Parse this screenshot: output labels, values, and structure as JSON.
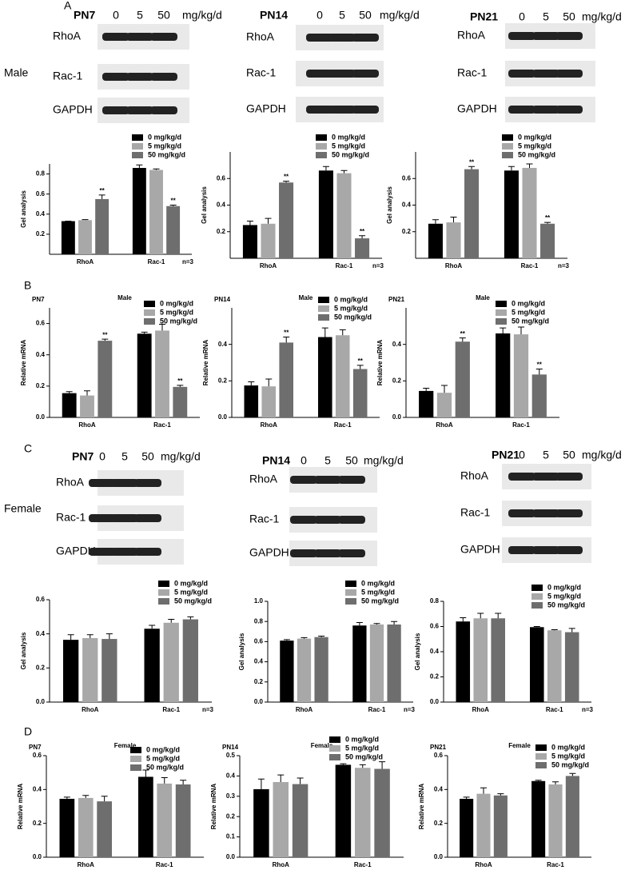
{
  "panels": [
    "A",
    "B",
    "C",
    "D"
  ],
  "sexes": [
    "Male",
    "Female"
  ],
  "blots": [
    {
      "label": "PN7",
      "doses": [
        "0",
        "5",
        "50"
      ],
      "unit": "mg/kg/d",
      "rows": [
        "RhoA",
        "Rac-1",
        "GAPDH"
      ]
    },
    {
      "label": "PN14",
      "doses": [
        "0",
        "5",
        "50"
      ],
      "unit": "mg/kg/d",
      "rows": [
        "RhoA",
        "Rac-1",
        "GAPDH"
      ]
    },
    {
      "label": "PN21",
      "doses": [
        "0",
        "5",
        "50"
      ],
      "unit": "mg/kg/d",
      "rows": [
        "RhoA",
        "Rac-1",
        "GAPDH"
      ]
    },
    {
      "label": "PN7",
      "doses": [
        "0",
        "5",
        "50"
      ],
      "unit": "mg/kg/d",
      "rows": [
        "RhoA",
        "Rac-1",
        "GAPDH"
      ]
    },
    {
      "label": "PN14",
      "doses": [
        "0",
        "5",
        "50"
      ],
      "unit": "mg/kg/d",
      "rows": [
        "RhoA",
        "Rac-1",
        "GAPDH"
      ]
    },
    {
      "label": "PN21",
      "doses": [
        "0",
        "5",
        "50"
      ],
      "unit": "mg/kg/d",
      "rows": [
        "RhoA",
        "Rac-1",
        "GAPDH"
      ]
    }
  ],
  "chart_data": [
    {
      "type": "bar",
      "ylabel": "Gel analysis",
      "note": "n=3",
      "categories": [
        "RhoA",
        "Rac-1"
      ],
      "ylim": [
        0,
        0.9
      ],
      "yticks": [
        0.2,
        0.4,
        0.6,
        0.8
      ],
      "series": [
        {
          "name": "0 mg/kg/d",
          "color": "#000000",
          "values": [
            0.33,
            0.86
          ],
          "errors": [
            0,
            0.03
          ],
          "annotations": [
            null,
            null
          ]
        },
        {
          "name": "5 mg/kg/d",
          "color": "#a8a8a8",
          "values": [
            0.34,
            0.84
          ],
          "errors": [
            0.005,
            0.01
          ],
          "annotations": [
            null,
            null
          ]
        },
        {
          "name": "50 mg/kg/d",
          "color": "#6e6e6e",
          "values": [
            0.55,
            0.48
          ],
          "errors": [
            0.04,
            0.01
          ],
          "annotations": [
            "**",
            "**"
          ]
        }
      ]
    },
    {
      "type": "bar",
      "ylabel": "Gel analysis",
      "note": "n=3",
      "categories": [
        "RhoA",
        "Rac-1"
      ],
      "ylim": [
        0,
        0.8
      ],
      "yticks": [
        0.2,
        0.4,
        0.6
      ],
      "series": [
        {
          "name": "0 mg/kg/d",
          "color": "#000000",
          "values": [
            0.25,
            0.66
          ],
          "errors": [
            0.03,
            0.03
          ],
          "annotations": [
            null,
            null
          ]
        },
        {
          "name": "5 mg/kg/d",
          "color": "#a8a8a8",
          "values": [
            0.26,
            0.64
          ],
          "errors": [
            0.04,
            0.02
          ],
          "annotations": [
            null,
            null
          ]
        },
        {
          "name": "50 mg/kg/d",
          "color": "#6e6e6e",
          "values": [
            0.57,
            0.15
          ],
          "errors": [
            0.01,
            0.02
          ],
          "annotations": [
            "**",
            "**"
          ]
        }
      ]
    },
    {
      "type": "bar",
      "ylabel": "Gel analysis",
      "note": "n=3",
      "categories": [
        "RhoA",
        "Rac-1"
      ],
      "ylim": [
        0,
        0.8
      ],
      "yticks": [
        0.2,
        0.4,
        0.6
      ],
      "series": [
        {
          "name": "0 mg/kg/d",
          "color": "#000000",
          "values": [
            0.26,
            0.66
          ],
          "errors": [
            0.03,
            0.03
          ],
          "annotations": [
            null,
            null
          ]
        },
        {
          "name": "5 mg/kg/d",
          "color": "#a8a8a8",
          "values": [
            0.27,
            0.68
          ],
          "errors": [
            0.04,
            0.03
          ],
          "annotations": [
            null,
            null
          ]
        },
        {
          "name": "50 mg/kg/d",
          "color": "#6e6e6e",
          "values": [
            0.67,
            0.26
          ],
          "errors": [
            0.02,
            0.01
          ],
          "annotations": [
            "**",
            "**"
          ]
        }
      ]
    },
    {
      "type": "bar",
      "label": "PN7",
      "title": "Male",
      "ylabel": "Relative mRNA",
      "categories": [
        "RhoA",
        "Rac-1"
      ],
      "ylim": [
        0,
        0.7
      ],
      "yticks": [
        {
          "value": 0,
          "label": "0.0"
        },
        0.2,
        0.4,
        0.6
      ],
      "series": [
        {
          "name": "0 mg/kg/d",
          "color": "#000000",
          "values": [
            0.155,
            0.535
          ],
          "errors": [
            0.01,
            0.01
          ],
          "annotations": [
            null,
            null
          ]
        },
        {
          "name": "5 mg/kg/d",
          "color": "#a8a8a8",
          "values": [
            0.14,
            0.555
          ],
          "errors": [
            0.03,
            0.04
          ],
          "annotations": [
            null,
            null
          ]
        },
        {
          "name": "50 mg/kg/d",
          "color": "#6e6e6e",
          "values": [
            0.49,
            0.195
          ],
          "errors": [
            0.01,
            0.01
          ],
          "annotations": [
            "**",
            "**"
          ]
        }
      ]
    },
    {
      "type": "bar",
      "label": "PN14",
      "title": "Male",
      "ylabel": "Relative mRNA",
      "categories": [
        "RhoA",
        "Rac-1"
      ],
      "ylim": [
        0,
        0.6
      ],
      "yticks": [
        {
          "value": 0,
          "label": "0.0"
        },
        0.2,
        0.4
      ],
      "series": [
        {
          "name": "0 mg/kg/d",
          "color": "#000000",
          "values": [
            0.175,
            0.44
          ],
          "errors": [
            0.02,
            0.05
          ],
          "annotations": [
            null,
            null
          ]
        },
        {
          "name": "5 mg/kg/d",
          "color": "#a8a8a8",
          "values": [
            0.17,
            0.45
          ],
          "errors": [
            0.04,
            0.03
          ],
          "annotations": [
            null,
            null
          ]
        },
        {
          "name": "50 mg/kg/d",
          "color": "#6e6e6e",
          "values": [
            0.41,
            0.265
          ],
          "errors": [
            0.03,
            0.02
          ],
          "annotations": [
            "**",
            "**"
          ]
        }
      ]
    },
    {
      "type": "bar",
      "label": "PN21",
      "title": "Male",
      "ylabel": "Relative mRNA",
      "categories": [
        "RhoA",
        "Rac-1"
      ],
      "ylim": [
        0,
        0.6
      ],
      "yticks": [
        {
          "value": 0,
          "label": "0.0"
        },
        0.2,
        0.4
      ],
      "series": [
        {
          "name": "0 mg/kg/d",
          "color": "#000000",
          "values": [
            0.145,
            0.46
          ],
          "errors": [
            0.015,
            0.03
          ],
          "annotations": [
            null,
            null
          ]
        },
        {
          "name": "5 mg/kg/d",
          "color": "#a8a8a8",
          "values": [
            0.135,
            0.455
          ],
          "errors": [
            0.04,
            0.04
          ],
          "annotations": [
            null,
            null
          ]
        },
        {
          "name": "50 mg/kg/d",
          "color": "#6e6e6e",
          "values": [
            0.415,
            0.235
          ],
          "errors": [
            0.02,
            0.03
          ],
          "annotations": [
            "**",
            "**"
          ]
        }
      ]
    },
    {
      "type": "bar",
      "ylabel": "Gel analysis",
      "note": "n=3",
      "categories": [
        "RhoA",
        "Rac-1"
      ],
      "ylim": [
        0,
        0.6
      ],
      "yticks": [
        {
          "value": 0,
          "label": "0.0"
        },
        0.2,
        0.4,
        0.6
      ],
      "series": [
        {
          "name": "0 mg/kg/d",
          "color": "#000000",
          "values": [
            0.365,
            0.43
          ],
          "errors": [
            0.03,
            0.02
          ]
        },
        {
          "name": "5 mg/kg/d",
          "color": "#a8a8a8",
          "values": [
            0.375,
            0.465
          ],
          "errors": [
            0.02,
            0.02
          ]
        },
        {
          "name": "50 mg/kg/d",
          "color": "#6e6e6e",
          "values": [
            0.37,
            0.485
          ],
          "errors": [
            0.03,
            0.015
          ]
        }
      ]
    },
    {
      "type": "bar",
      "ylabel": "Gel analysis",
      "note": "n=3",
      "categories": [
        "RhoA",
        "Rac-1"
      ],
      "ylim": [
        0,
        1.0
      ],
      "yticks": [
        {
          "value": 0,
          "label": "0.0"
        },
        0.2,
        0.4,
        0.6,
        0.8,
        {
          "value": 1,
          "label": "1.0"
        }
      ],
      "series": [
        {
          "name": "0 mg/kg/d",
          "color": "#000000",
          "values": [
            0.61,
            0.76
          ],
          "errors": [
            0.01,
            0.03
          ]
        },
        {
          "name": "5 mg/kg/d",
          "color": "#a8a8a8",
          "values": [
            0.63,
            0.77
          ],
          "errors": [
            0.01,
            0.01
          ]
        },
        {
          "name": "50 mg/kg/d",
          "color": "#6e6e6e",
          "values": [
            0.645,
            0.77
          ],
          "errors": [
            0.01,
            0.03
          ]
        }
      ]
    },
    {
      "type": "bar",
      "ylabel": "Gel analysis",
      "note": "n=3",
      "categories": [
        "RhoA",
        "Rac-1"
      ],
      "ylim": [
        0,
        0.8
      ],
      "yticks": [
        {
          "value": 0,
          "label": "0.0"
        },
        0.2,
        0.4,
        0.6,
        0.8
      ],
      "series": [
        {
          "name": "0 mg/kg/d",
          "color": "#000000",
          "values": [
            0.64,
            0.595
          ],
          "errors": [
            0.03,
            0.005
          ]
        },
        {
          "name": "5 mg/kg/d",
          "color": "#a8a8a8",
          "values": [
            0.665,
            0.57
          ],
          "errors": [
            0.04,
            0.005
          ]
        },
        {
          "name": "50 mg/kg/d",
          "color": "#6e6e6e",
          "values": [
            0.665,
            0.555
          ],
          "errors": [
            0.04,
            0.03
          ]
        }
      ]
    },
    {
      "type": "bar",
      "label": "PN7",
      "title": "Female",
      "ylabel": "Relative mRNA",
      "categories": [
        "RhoA",
        "Rac-1"
      ],
      "ylim": [
        0,
        0.6
      ],
      "yticks": [
        {
          "value": 0,
          "label": "0.0"
        },
        0.2,
        0.4,
        0.6
      ],
      "series": [
        {
          "name": "0 mg/kg/d",
          "color": "#000000",
          "values": [
            0.345,
            0.475
          ],
          "errors": [
            0.01,
            0.04
          ]
        },
        {
          "name": "5 mg/kg/d",
          "color": "#a8a8a8",
          "values": [
            0.35,
            0.435
          ],
          "errors": [
            0.015,
            0.035
          ]
        },
        {
          "name": "50 mg/kg/d",
          "color": "#6e6e6e",
          "values": [
            0.33,
            0.43
          ],
          "errors": [
            0.03,
            0.025
          ]
        }
      ]
    },
    {
      "type": "bar",
      "label": "PN14",
      "title": "Female",
      "ylabel": "Relative mRNA",
      "categories": [
        "RhoA",
        "Rac-1"
      ],
      "ylim": [
        0,
        0.5
      ],
      "yticks": [
        {
          "value": 0,
          "label": "0.0"
        },
        0.1,
        0.2,
        0.3,
        0.4,
        0.5
      ],
      "series": [
        {
          "name": "0 mg/kg/d",
          "color": "#000000",
          "values": [
            0.335,
            0.455
          ],
          "errors": [
            0.05,
            0.005
          ]
        },
        {
          "name": "5 mg/kg/d",
          "color": "#a8a8a8",
          "values": [
            0.37,
            0.44
          ],
          "errors": [
            0.035,
            0.015
          ]
        },
        {
          "name": "50 mg/kg/d",
          "color": "#6e6e6e",
          "values": [
            0.36,
            0.435
          ],
          "errors": [
            0.03,
            0.035
          ]
        }
      ]
    },
    {
      "type": "bar",
      "label": "PN21",
      "title": "Female",
      "ylabel": "Relative mRNA",
      "categories": [
        "RhoA",
        "Rac-1"
      ],
      "ylim": [
        0,
        0.6
      ],
      "yticks": [
        {
          "value": 0,
          "label": "0.0"
        },
        0.2,
        0.4,
        0.6
      ],
      "series": [
        {
          "name": "0 mg/kg/d",
          "color": "#000000",
          "values": [
            0.345,
            0.45
          ],
          "errors": [
            0.01,
            0.005
          ]
        },
        {
          "name": "5 mg/kg/d",
          "color": "#a8a8a8",
          "values": [
            0.375,
            0.43
          ],
          "errors": [
            0.035,
            0.015
          ]
        },
        {
          "name": "50 mg/kg/d",
          "color": "#6e6e6e",
          "values": [
            0.365,
            0.48
          ],
          "errors": [
            0.01,
            0.015
          ]
        }
      ]
    }
  ]
}
